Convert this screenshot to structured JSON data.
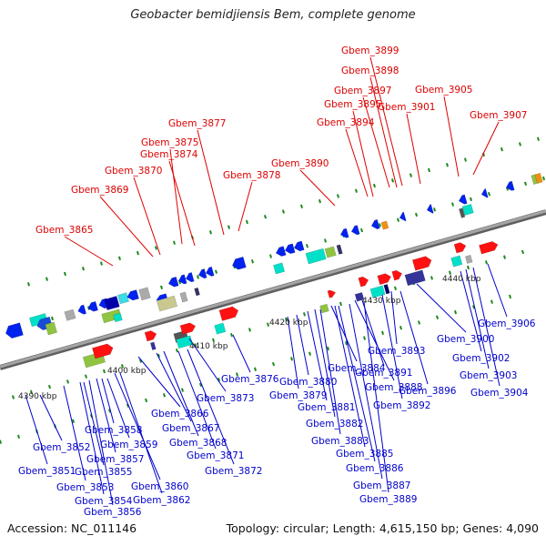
{
  "title": "Geobacter bemidjiensis Bem, complete genome",
  "footer": {
    "accession": "Accession: NC_011146",
    "summary": "Topology: circular; Length: 4,615,150 bp; Genes: 4,090"
  },
  "colors": {
    "backbone": "#8a8a8a",
    "upper_labels": "#dd0000",
    "lower_labels": "#0000cc"
  },
  "tick_labels": [
    "4390 kbp",
    "4400 kbp",
    "4410 kbp",
    "4420 kbp",
    "4430 kbp",
    "4440 kbp"
  ],
  "upper_labels": [
    "Gbem_3865",
    "Gbem_3869",
    "Gbem_3870",
    "Gbem_3874",
    "Gbem_3875",
    "Gbem_3877",
    "Gbem_3878",
    "Gbem_3890",
    "Gbem_3894",
    "Gbem_3895",
    "Gbem_3897",
    "Gbem_3898",
    "Gbem_3899",
    "Gbem_3901",
    "Gbem_3905",
    "Gbem_3907"
  ],
  "lower_labels": [
    "Gbem_3851",
    "Gbem_3852",
    "Gbem_3853",
    "Gbem_3854",
    "Gbem_3855",
    "Gbem_3856",
    "Gbem_3857",
    "Gbem_3858",
    "Gbem_3859",
    "Gbem_3860",
    "Gbem_3862",
    "Gbem_3866",
    "Gbem_3867",
    "Gbem_3868",
    "Gbem_3871",
    "Gbem_3872",
    "Gbem_3873",
    "Gbem_3876",
    "Gbem_3879",
    "Gbem_3880",
    "Gbem_3881",
    "Gbem_3882",
    "Gbem_3883",
    "Gbem_3884",
    "Gbem_3885",
    "Gbem_3886",
    "Gbem_3887",
    "Gbem_3888",
    "Gbem_3889",
    "Gbem_3891",
    "Gbem_3892",
    "Gbem_3893",
    "Gbem_3896",
    "Gbem_3900",
    "Gbem_3902",
    "Gbem_3903",
    "Gbem_3904",
    "Gbem_3906"
  ]
}
